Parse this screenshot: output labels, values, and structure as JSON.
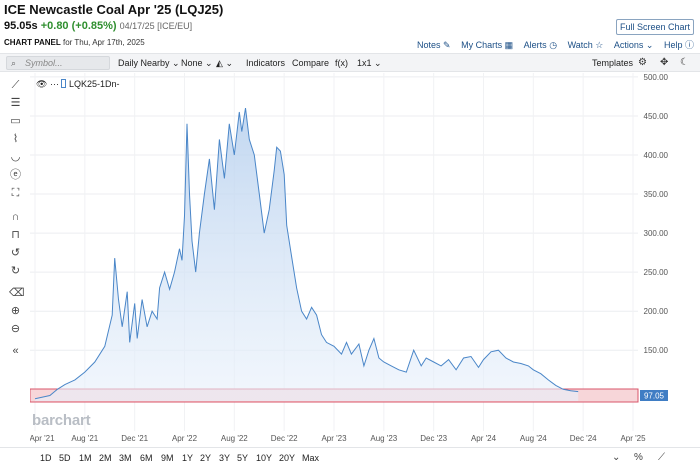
{
  "header": {
    "title": "ICE Newcastle Coal Apr '25 (LQJ25)",
    "price": "95.05s",
    "change": "+0.80 (+0.85%)",
    "meta": "04/17/25 [ICE/EU]",
    "full_screen": "Full Screen Chart"
  },
  "panel": {
    "label": "CHART PANEL",
    "date_text": "for Thu, Apr 17th, 2025",
    "links": [
      "Notes",
      "My Charts",
      "Alerts",
      "Watch",
      "Actions",
      "Help"
    ]
  },
  "toolbar": {
    "symbol_placeholder": "Symbol...",
    "period": "Daily Nearby",
    "overlay": "None",
    "indicators": "Indicators",
    "compare": "Compare",
    "fx": "f(x)",
    "layout": "1x1",
    "templates": "Templates"
  },
  "left_tools": [
    "line-tool-icon",
    "fib-tool-icon",
    "rectangle-tool-icon",
    "brush-tool-icon",
    "cycle-tool-icon",
    "text-tool-icon",
    "magnet-icon",
    "lock-icon",
    "undo-icon",
    "redo-icon",
    "trash-icon",
    "zoom-in-icon",
    "zoom-out-icon",
    "collapse-icon"
  ],
  "legend": {
    "symbol": "LQK25",
    "interval": "-1Dn-"
  },
  "watermark": "barchart",
  "last_price_label": "97.05",
  "range_buttons": [
    "1D",
    "5D",
    "1M",
    "2M",
    "3M",
    "6M",
    "9M",
    "1Y",
    "2Y",
    "3Y",
    "5Y",
    "10Y",
    "20Y",
    "Max"
  ],
  "chart_data": {
    "type": "area",
    "x_ticks": [
      "Apr '21",
      "Aug '21",
      "Dec '21",
      "Apr '22",
      "Aug '22",
      "Dec '22",
      "Apr '23",
      "Aug '23",
      "Dec '23",
      "Apr '24",
      "Aug '24",
      "Dec '24",
      "Apr '25"
    ],
    "y_ticks": [
      150,
      200,
      250,
      300,
      350,
      400,
      450,
      500
    ],
    "ylim": [
      85,
      505
    ],
    "series": [
      {
        "points": [
          [
            0.0,
            88
          ],
          [
            0.3,
            90
          ],
          [
            0.6,
            92
          ],
          [
            0.9,
            100
          ],
          [
            1.2,
            106
          ],
          [
            1.6,
            112
          ],
          [
            2.0,
            122
          ],
          [
            2.4,
            135
          ],
          [
            2.8,
            155
          ],
          [
            3.1,
            195
          ],
          [
            3.2,
            268
          ],
          [
            3.35,
            215
          ],
          [
            3.5,
            180
          ],
          [
            3.7,
            225
          ],
          [
            3.8,
            160
          ],
          [
            4.0,
            210
          ],
          [
            4.1,
            165
          ],
          [
            4.3,
            215
          ],
          [
            4.5,
            180
          ],
          [
            4.7,
            200
          ],
          [
            4.9,
            190
          ],
          [
            5.0,
            230
          ],
          [
            5.2,
            250
          ],
          [
            5.4,
            228
          ],
          [
            5.6,
            250
          ],
          [
            5.8,
            280
          ],
          [
            5.9,
            265
          ],
          [
            6.0,
            322
          ],
          [
            6.1,
            440
          ],
          [
            6.2,
            350
          ],
          [
            6.3,
            290
          ],
          [
            6.45,
            250
          ],
          [
            6.6,
            300
          ],
          [
            6.8,
            350
          ],
          [
            7.0,
            395
          ],
          [
            7.2,
            330
          ],
          [
            7.4,
            420
          ],
          [
            7.6,
            370
          ],
          [
            7.8,
            440
          ],
          [
            8.0,
            400
          ],
          [
            8.2,
            455
          ],
          [
            8.3,
            430
          ],
          [
            8.45,
            460
          ],
          [
            8.6,
            420
          ],
          [
            8.8,
            400
          ],
          [
            9.0,
            350
          ],
          [
            9.2,
            300
          ],
          [
            9.4,
            330
          ],
          [
            9.6,
            380
          ],
          [
            9.7,
            410
          ],
          [
            9.85,
            405
          ],
          [
            10.0,
            375
          ],
          [
            10.1,
            310
          ],
          [
            10.3,
            270
          ],
          [
            10.5,
            230
          ],
          [
            10.7,
            200
          ],
          [
            10.9,
            190
          ],
          [
            11.1,
            205
          ],
          [
            11.3,
            195
          ],
          [
            11.5,
            170
          ],
          [
            11.7,
            160
          ],
          [
            12.0,
            155
          ],
          [
            12.3,
            145
          ],
          [
            12.5,
            160
          ],
          [
            12.7,
            145
          ],
          [
            13.0,
            158
          ],
          [
            13.2,
            130
          ],
          [
            13.4,
            150
          ],
          [
            13.6,
            165
          ],
          [
            13.8,
            140
          ],
          [
            14.0,
            135
          ],
          [
            14.3,
            130
          ],
          [
            14.6,
            125
          ],
          [
            14.9,
            122
          ],
          [
            15.2,
            150
          ],
          [
            15.5,
            130
          ],
          [
            15.7,
            140
          ],
          [
            16.0,
            135
          ],
          [
            16.3,
            130
          ],
          [
            16.6,
            138
          ],
          [
            16.9,
            125
          ],
          [
            17.2,
            140
          ],
          [
            17.5,
            142
          ],
          [
            17.8,
            128
          ],
          [
            18.0,
            138
          ],
          [
            18.3,
            148
          ],
          [
            18.6,
            150
          ],
          [
            18.9,
            140
          ],
          [
            19.2,
            135
          ],
          [
            19.5,
            133
          ],
          [
            19.8,
            130
          ],
          [
            20.0,
            125
          ],
          [
            20.3,
            120
          ],
          [
            20.6,
            112
          ],
          [
            20.9,
            105
          ],
          [
            21.2,
            100
          ],
          [
            21.5,
            98
          ],
          [
            21.8,
            97
          ]
        ]
      }
    ]
  }
}
